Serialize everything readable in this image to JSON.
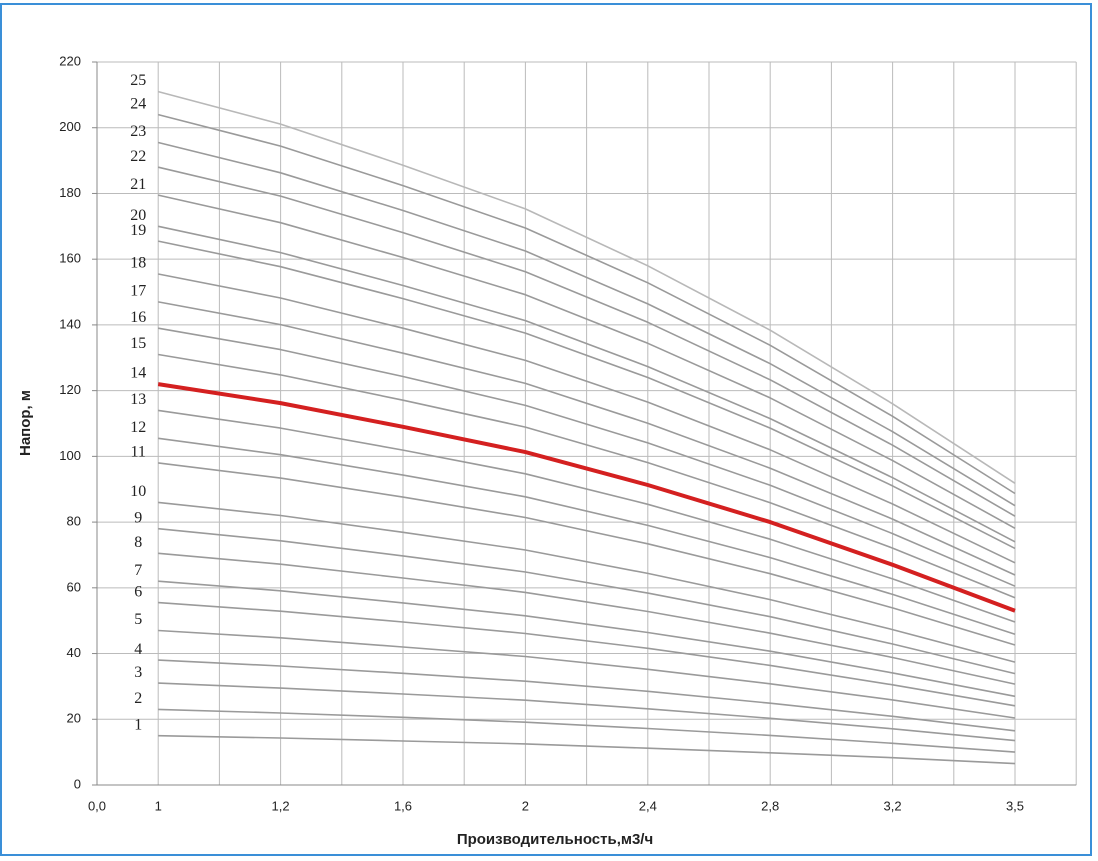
{
  "chart_data": {
    "type": "line",
    "xlabel": "Производительность,м3/ч",
    "ylabel": "Напор, м",
    "categories": [
      "0,0",
      "1",
      "1,2",
      "1,6",
      "2",
      "2,4",
      "2,8",
      "3,2",
      "3,5"
    ],
    "ylim": [
      0,
      220
    ],
    "yticks": [
      0,
      20,
      40,
      60,
      80,
      100,
      120,
      140,
      160,
      180,
      200,
      220
    ],
    "grid": true,
    "series": [
      {
        "name": "1",
        "color": "#9a9a9a",
        "values": [
          null,
          15,
          14.3,
          13.4,
          12.5,
          11.2,
          9.8,
          8.3,
          6.5
        ]
      },
      {
        "name": "2",
        "color": "#9a9a9a",
        "values": [
          null,
          23,
          21.9,
          20.6,
          19.1,
          17.2,
          15.1,
          12.7,
          10
        ]
      },
      {
        "name": "3",
        "color": "#9a9a9a",
        "values": [
          null,
          31,
          29.5,
          27.7,
          25.8,
          23.2,
          20.3,
          17.1,
          13.5
        ]
      },
      {
        "name": "4",
        "color": "#9a9a9a",
        "values": [
          null,
          38,
          36.2,
          34,
          31.6,
          28.5,
          24.9,
          20.9,
          16.5
        ]
      },
      {
        "name": "5",
        "color": "#9a9a9a",
        "values": [
          null,
          47,
          44.8,
          42,
          39.1,
          35.2,
          30.8,
          25.9,
          20.4
        ]
      },
      {
        "name": "6",
        "color": "#9a9a9a",
        "values": [
          null,
          55.5,
          52.9,
          49.6,
          46.1,
          41.6,
          36.4,
          30.5,
          24.1
        ]
      },
      {
        "name": "7",
        "color": "#9a9a9a",
        "values": [
          null,
          62,
          59.1,
          55.4,
          51.5,
          46.4,
          40.7,
          34.1,
          27
        ]
      },
      {
        "name": "8",
        "color": "#9a9a9a",
        "values": [
          null,
          70.5,
          67.2,
          63,
          58.6,
          52.8,
          46.2,
          38.8,
          30.7
        ]
      },
      {
        "name": "9",
        "color": "#9a9a9a",
        "values": [
          null,
          78,
          74.3,
          69.7,
          64.8,
          58.4,
          51.2,
          42.9,
          33.9
        ]
      },
      {
        "name": "10",
        "color": "#9a9a9a",
        "values": [
          null,
          86,
          82,
          76.9,
          71.5,
          64.4,
          56.4,
          47.3,
          37.4
        ]
      },
      {
        "name": "11",
        "color": "#9a9a9a",
        "values": [
          null,
          98,
          93.4,
          87.6,
          81.4,
          73.4,
          64.3,
          53.9,
          42.6
        ]
      },
      {
        "name": "12",
        "color": "#9a9a9a",
        "values": [
          null,
          105.5,
          100.5,
          94.3,
          87.7,
          79,
          69.2,
          58,
          45.9
        ]
      },
      {
        "name": "13",
        "color": "#9a9a9a",
        "values": [
          null,
          114,
          108.6,
          101.9,
          94.7,
          85.4,
          74.8,
          62.7,
          49.6
        ]
      },
      {
        "name": "14",
        "color": "#d42020",
        "values": [
          null,
          122,
          116.2,
          109,
          101.3,
          91.3,
          80,
          67,
          53
        ]
      },
      {
        "name": "15",
        "color": "#9a9a9a",
        "values": [
          null,
          131,
          124.8,
          117.1,
          108.9,
          98.1,
          85.9,
          72.1,
          57
        ]
      },
      {
        "name": "16",
        "color": "#9a9a9a",
        "values": [
          null,
          139,
          132.5,
          124.3,
          115.5,
          104.1,
          91.2,
          76.5,
          60.5
        ]
      },
      {
        "name": "17",
        "color": "#9a9a9a",
        "values": [
          null,
          147,
          140.1,
          131.4,
          122.2,
          110.1,
          96.4,
          80.9,
          63.9
        ]
      },
      {
        "name": "18",
        "color": "#9a9a9a",
        "values": [
          null,
          155.5,
          148.2,
          139,
          129.2,
          116.5,
          102,
          85.5,
          67.6
        ]
      },
      {
        "name": "19",
        "color": "#9a9a9a",
        "values": [
          null,
          165.5,
          157.7,
          148,
          137.5,
          124,
          108.6,
          91,
          72
        ]
      },
      {
        "name": "20",
        "color": "#9a9a9a",
        "values": [
          null,
          170,
          162,
          152,
          141.3,
          127.3,
          111.5,
          93.5,
          74
        ]
      },
      {
        "name": "21",
        "color": "#9a9a9a",
        "values": [
          null,
          179.5,
          171.1,
          160.5,
          149.2,
          134.4,
          117.8,
          98.7,
          78.1
        ]
      },
      {
        "name": "22",
        "color": "#9a9a9a",
        "values": [
          null,
          188,
          179.2,
          168.1,
          156.2,
          140.8,
          123.3,
          103.4,
          81.8
        ]
      },
      {
        "name": "23",
        "color": "#9a9a9a",
        "values": [
          null,
          195.5,
          186.3,
          174.8,
          162.5,
          146.4,
          128.2,
          107.5,
          85
        ]
      },
      {
        "name": "24",
        "color": "#9a9a9a",
        "values": [
          null,
          204,
          194.4,
          182.4,
          169.5,
          152.8,
          133.8,
          112.2,
          88.7
        ]
      },
      {
        "name": "25",
        "color": "#b8b8b8",
        "values": [
          null,
          211,
          201.1,
          188.6,
          175.3,
          158,
          138.4,
          116,
          91.8
        ]
      }
    ]
  }
}
